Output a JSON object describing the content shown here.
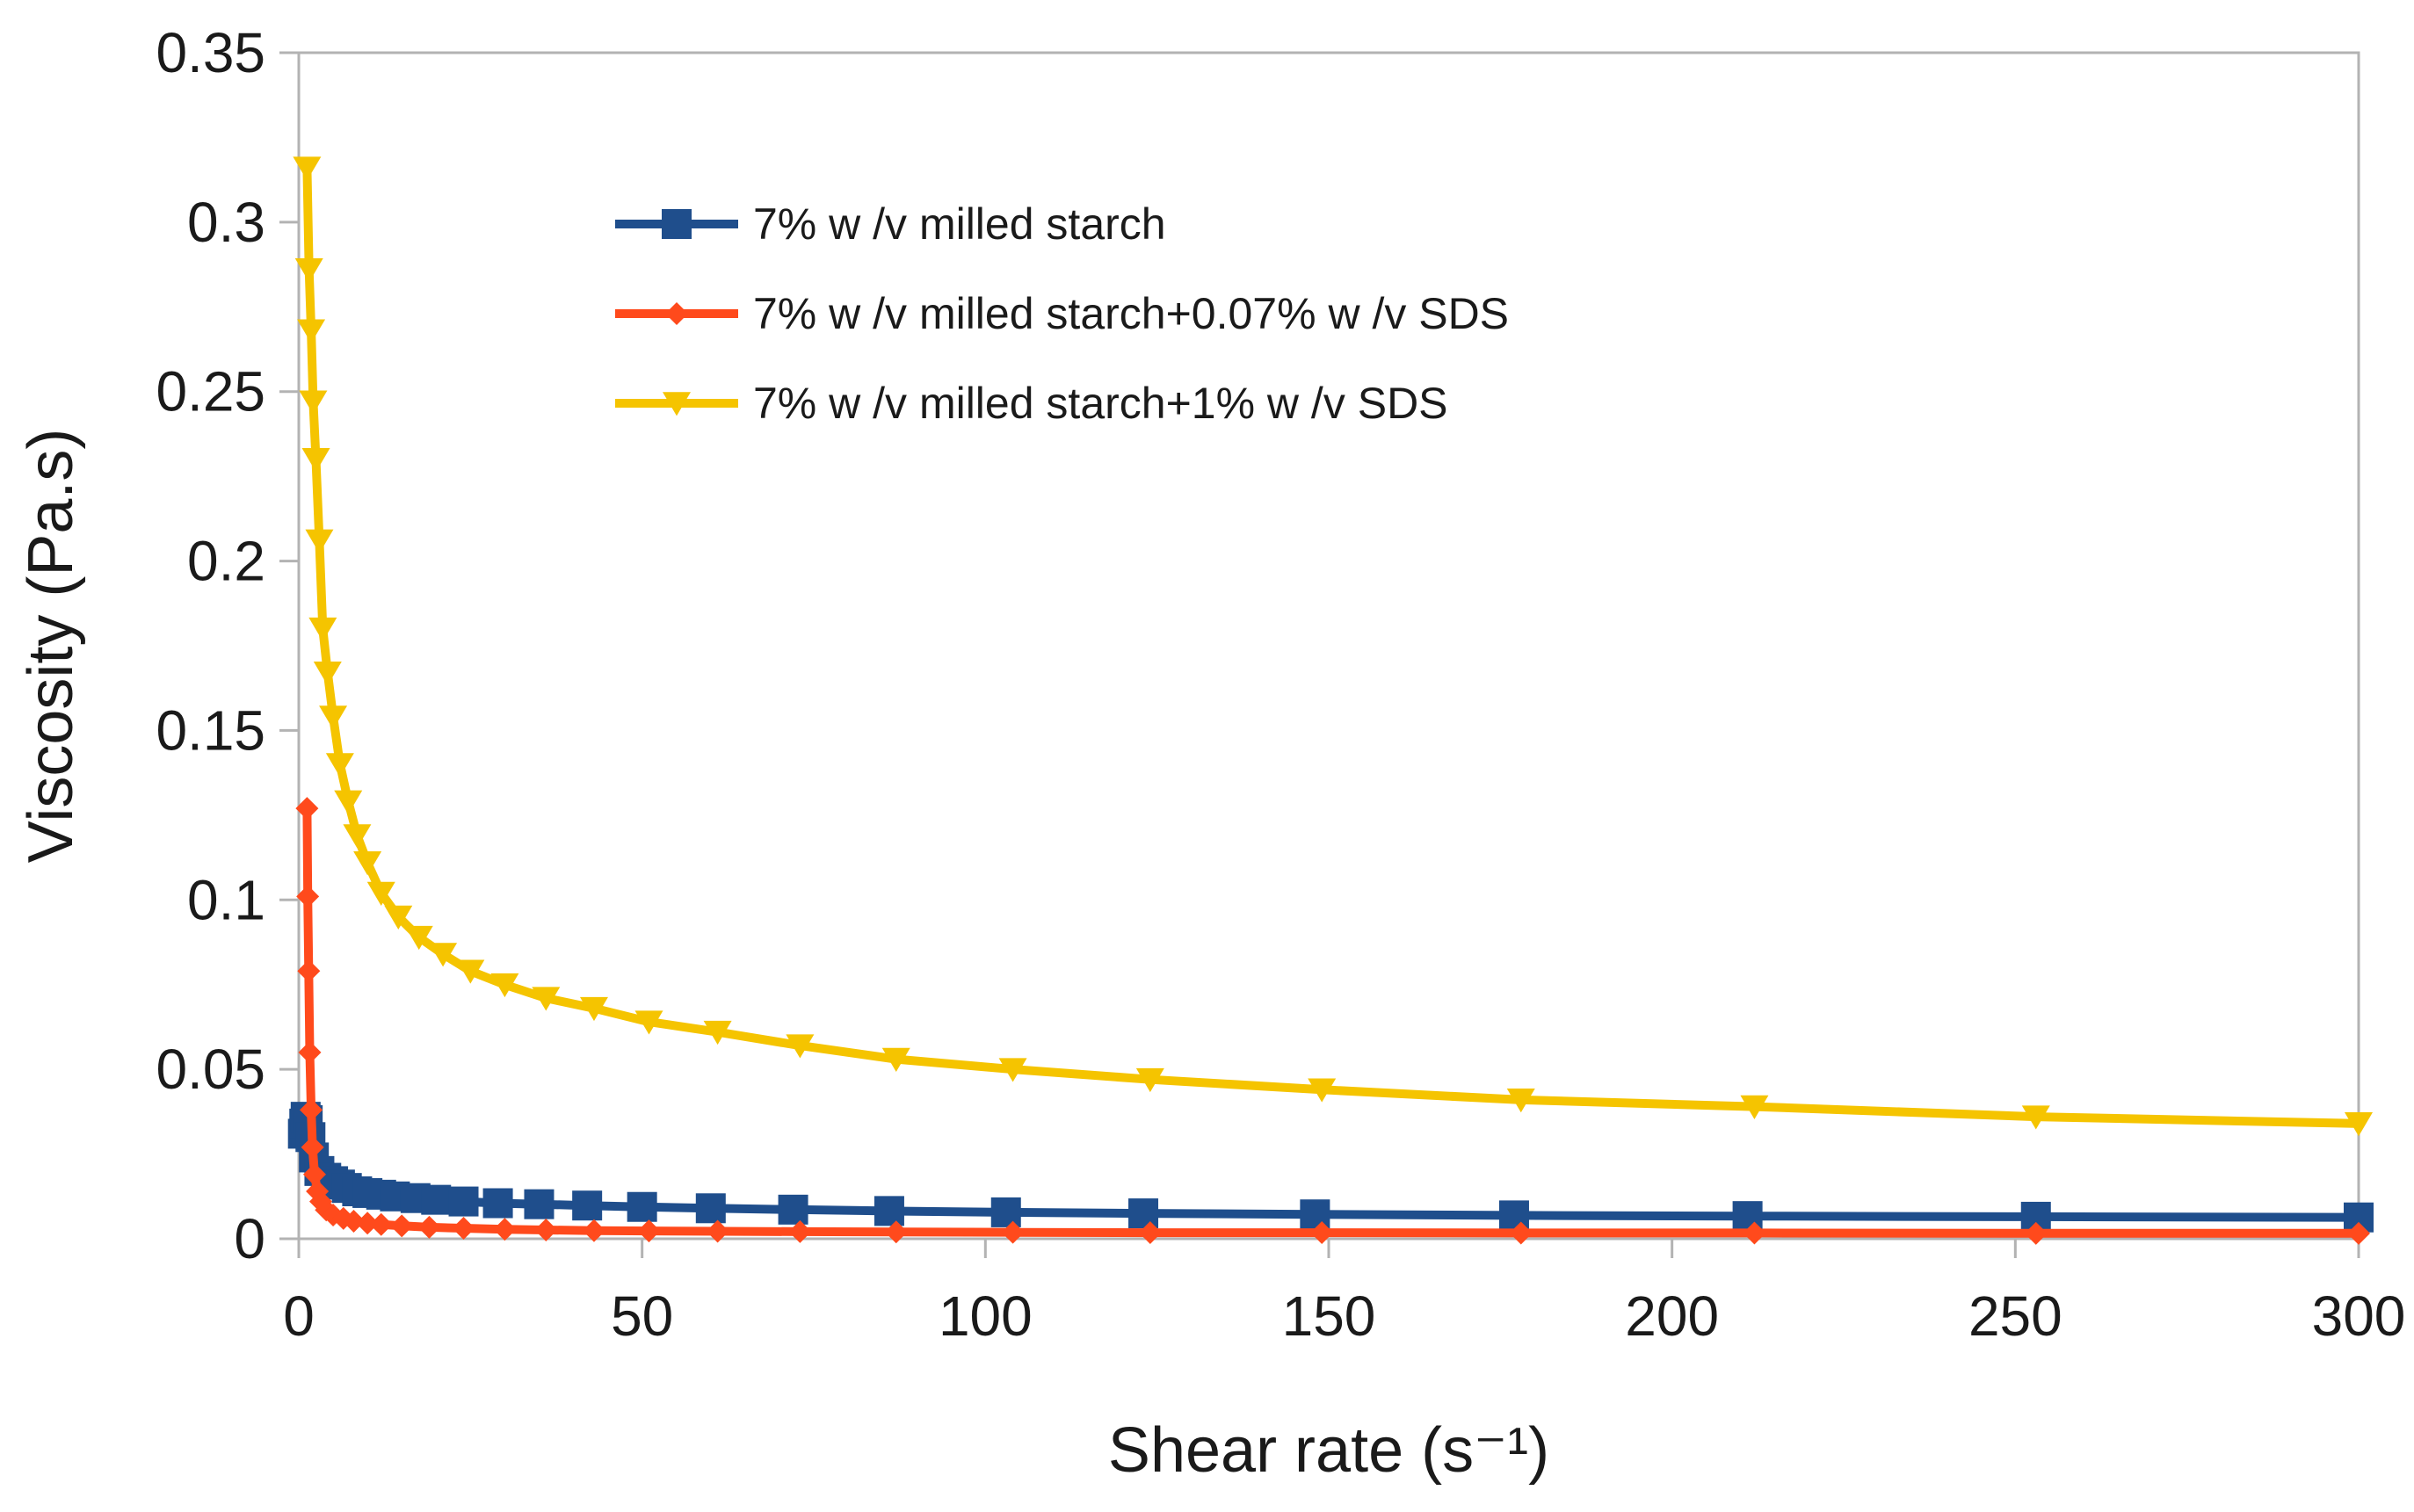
{
  "chart_data": {
    "type": "line",
    "title": "",
    "xlabel": "Shear rate (s⁻¹)",
    "ylabel": "Viscosity (Pa.s)",
    "xlim": [
      0,
      300
    ],
    "ylim": [
      0,
      0.35
    ],
    "xticks": [
      "0",
      "50",
      "100",
      "150",
      "200",
      "250",
      "300"
    ],
    "xtick_values": [
      0,
      50,
      100,
      150,
      200,
      250,
      300
    ],
    "yticks": [
      "0",
      "0.05",
      "0.1",
      "0.15",
      "0.2",
      "0.25",
      "0.3",
      "0.35"
    ],
    "ytick_values": [
      0,
      0.05,
      0.1,
      0.15,
      0.2,
      0.25,
      0.3,
      0.35
    ],
    "grid": false,
    "legend_position": "top-left",
    "series": [
      {
        "name": "7% w /v  milled starch",
        "color": "#1f4e8c",
        "marker": "square",
        "x": [
          0.6,
          0.8,
          1,
          1.3,
          1.7,
          2.2,
          3,
          4,
          5,
          6,
          7,
          8.5,
          10,
          12,
          14,
          17,
          20,
          24,
          29,
          35,
          42,
          50,
          60,
          72,
          86,
          103,
          123,
          148,
          177,
          211,
          253,
          300
        ],
        "y": [
          0.031,
          0.034,
          0.036,
          0.035,
          0.03,
          0.024,
          0.02,
          0.018,
          0.017,
          0.016,
          0.015,
          0.014,
          0.0135,
          0.013,
          0.0125,
          0.012,
          0.0115,
          0.011,
          0.0105,
          0.0102,
          0.0098,
          0.0094,
          0.009,
          0.0086,
          0.0082,
          0.0078,
          0.0075,
          0.0072,
          0.0069,
          0.0067,
          0.0065,
          0.0063
        ]
      },
      {
        "name": "7% w /v  milled starch+0.07% w /v  SDS",
        "color": "#ff4a1c",
        "marker": "diamond",
        "x": [
          1.2,
          1.3,
          1.45,
          1.6,
          1.8,
          2,
          2.3,
          2.7,
          3.2,
          4,
          5,
          6.5,
          8,
          10,
          12,
          15,
          19,
          24,
          30,
          36,
          43,
          51,
          61,
          73,
          87,
          104,
          124,
          149,
          178,
          212,
          253,
          300
        ],
        "y": [
          0.127,
          0.101,
          0.079,
          0.055,
          0.038,
          0.027,
          0.019,
          0.014,
          0.011,
          0.0085,
          0.007,
          0.006,
          0.0052,
          0.0046,
          0.0042,
          0.0038,
          0.0034,
          0.0031,
          0.0028,
          0.0026,
          0.0024,
          0.0023,
          0.0022,
          0.0021,
          0.002,
          0.0019,
          0.0018,
          0.0018,
          0.0017,
          0.0017,
          0.0016,
          0.0016
        ]
      },
      {
        "name": "7% w /v  milled starch+1% w /v  SDS",
        "color": "#f5c400",
        "marker": "triangle-down",
        "x": [
          1.2,
          1.5,
          1.8,
          2.1,
          2.5,
          3,
          3.5,
          4.2,
          5,
          6,
          7.2,
          8.5,
          10,
          12,
          14.5,
          17.5,
          21,
          25,
          30,
          36,
          43,
          51,
          61,
          73,
          87,
          104,
          124,
          149,
          178,
          212,
          253,
          300
        ],
        "y": [
          0.316,
          0.286,
          0.268,
          0.247,
          0.23,
          0.206,
          0.18,
          0.167,
          0.154,
          0.14,
          0.129,
          0.119,
          0.111,
          0.102,
          0.095,
          0.089,
          0.084,
          0.079,
          0.075,
          0.071,
          0.068,
          0.064,
          0.061,
          0.057,
          0.053,
          0.05,
          0.047,
          0.044,
          0.041,
          0.039,
          0.036,
          0.034
        ]
      }
    ]
  }
}
